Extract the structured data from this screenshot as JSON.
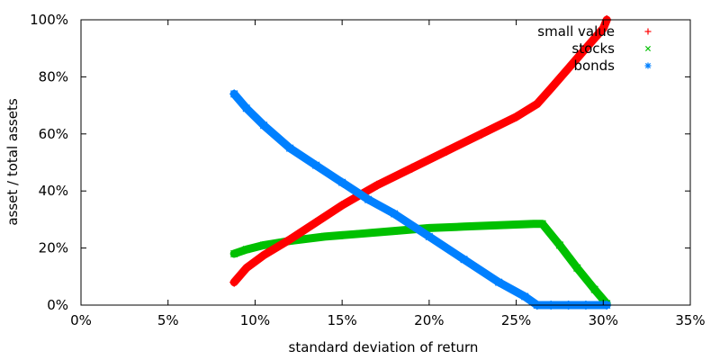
{
  "chart_data": {
    "type": "scatter",
    "xlabel": "standard deviation of return",
    "ylabel": "asset / total assets",
    "xlim": [
      0,
      35
    ],
    "ylim": [
      0,
      100
    ],
    "xticks": [
      0,
      5,
      10,
      15,
      20,
      25,
      30,
      35
    ],
    "yticks": [
      0,
      20,
      40,
      60,
      80,
      100
    ],
    "xtick_labels": [
      "0%",
      "5%",
      "10%",
      "15%",
      "20%",
      "25%",
      "30%",
      "35%"
    ],
    "ytick_labels": [
      "0%",
      "20%",
      "40%",
      "60%",
      "80%",
      "100%"
    ],
    "grid": false,
    "legend_position": "top-right",
    "series": [
      {
        "name": "small value",
        "marker": "+",
        "color": "#ff0000",
        "x": [
          8.8,
          9.5,
          10.5,
          12,
          13.5,
          15,
          17,
          19,
          21,
          23,
          25,
          26.2,
          27,
          28,
          29,
          30,
          30.2
        ],
        "y": [
          8,
          13,
          17.5,
          23,
          29,
          35,
          42,
          48,
          54,
          60,
          66,
          70.5,
          76,
          83,
          90,
          97,
          100
        ]
      },
      {
        "name": "stocks",
        "marker": "x",
        "color": "#00c000",
        "x": [
          8.8,
          9.5,
          10.5,
          12,
          14,
          16,
          18,
          20,
          22,
          24,
          26,
          26.5,
          27.5,
          28.5,
          29.5,
          30.2
        ],
        "y": [
          18,
          19.5,
          21,
          22.5,
          24,
          25,
          26,
          27,
          27.5,
          28,
          28.5,
          28.5,
          21,
          13,
          5.5,
          0.5
        ]
      },
      {
        "name": "bonds",
        "marker": "*",
        "color": "#0080ff",
        "x": [
          8.8,
          9.5,
          10.5,
          12,
          13.5,
          15,
          16.5,
          18,
          20,
          22,
          24,
          25.5,
          26.2,
          27,
          28,
          29,
          30.2
        ],
        "y": [
          74,
          69,
          63,
          55,
          49,
          43,
          37,
          32,
          24,
          16,
          8,
          3,
          0,
          0,
          0,
          0,
          0
        ]
      }
    ]
  }
}
